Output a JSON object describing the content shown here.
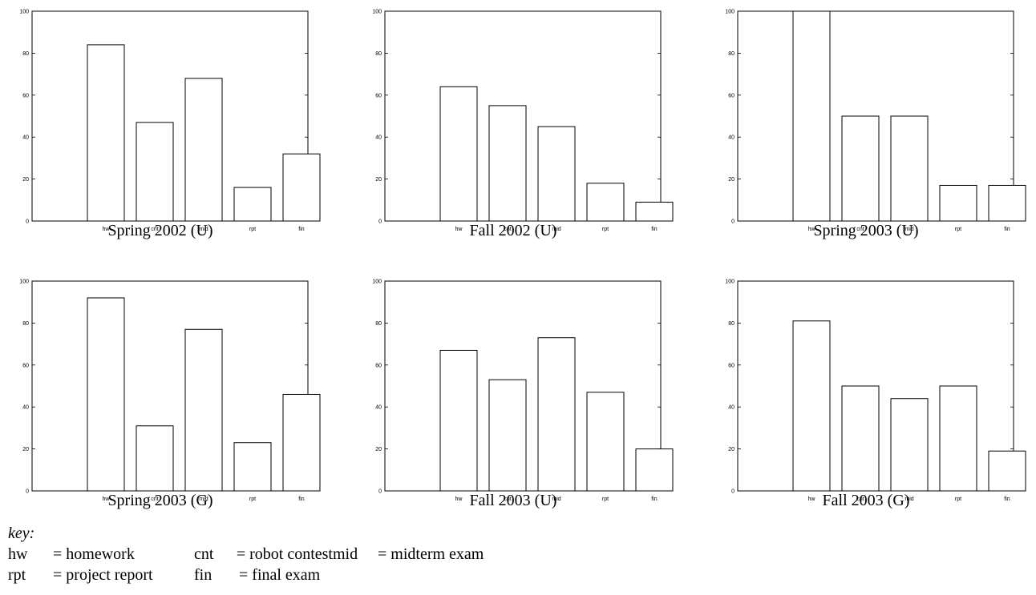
{
  "chart_data": [
    {
      "type": "bar",
      "title": "Spring 2002 (U)",
      "categories": [
        "hw",
        "cnt",
        "mid",
        "rpt",
        "fin"
      ],
      "values": [
        84,
        47,
        68,
        16,
        32
      ],
      "ylim": [
        0,
        100
      ],
      "yticks": [
        "0",
        "20",
        "40",
        "60",
        "80",
        "100"
      ],
      "xlabel": "",
      "ylabel": ""
    },
    {
      "type": "bar",
      "title": "Fall 2002 (U)",
      "categories": [
        "hw",
        "cnt",
        "mid",
        "rpt",
        "fin"
      ],
      "values": [
        64,
        55,
        45,
        18,
        9
      ],
      "ylim": [
        0,
        100
      ],
      "yticks": [
        "0",
        "20",
        "40",
        "60",
        "80",
        "100"
      ],
      "xlabel": "",
      "ylabel": ""
    },
    {
      "type": "bar",
      "title": "Spring 2003 (U)",
      "categories": [
        "hw",
        "cnt",
        "mid",
        "rpt",
        "fin"
      ],
      "values": [
        100,
        50,
        50,
        17,
        17
      ],
      "ylim": [
        0,
        100
      ],
      "yticks": [
        "0",
        "20",
        "40",
        "60",
        "80",
        "100"
      ],
      "xlabel": "",
      "ylabel": ""
    },
    {
      "type": "bar",
      "title": "Spring 2003 (G)",
      "categories": [
        "hw",
        "cnt",
        "mid",
        "rpt",
        "fin"
      ],
      "values": [
        92,
        31,
        77,
        23,
        46
      ],
      "ylim": [
        0,
        100
      ],
      "yticks": [
        "0",
        "20",
        "40",
        "60",
        "80",
        "100"
      ],
      "xlabel": "",
      "ylabel": ""
    },
    {
      "type": "bar",
      "title": "Fall 2003 (U)",
      "categories": [
        "hw",
        "cnt",
        "mid",
        "rpt",
        "fin"
      ],
      "values": [
        67,
        53,
        73,
        47,
        20
      ],
      "ylim": [
        0,
        100
      ],
      "yticks": [
        "0",
        "20",
        "40",
        "60",
        "80",
        "100"
      ],
      "xlabel": "",
      "ylabel": ""
    },
    {
      "type": "bar",
      "title": "Fall 2003 (G)",
      "categories": [
        "hw",
        "cnt",
        "mid",
        "rpt",
        "fin"
      ],
      "values": [
        81,
        50,
        44,
        50,
        19
      ],
      "ylim": [
        0,
        100
      ],
      "yticks": [
        "0",
        "20",
        "40",
        "60",
        "80",
        "100"
      ],
      "xlabel": "",
      "ylabel": ""
    }
  ],
  "key": {
    "title": "key",
    "entries": [
      {
        "abbr": "hw",
        "meaning": "= homework"
      },
      {
        "abbr": "cnt",
        "meaning": "= robot contest"
      },
      {
        "abbr": "mid",
        "meaning": "= midterm exam"
      },
      {
        "abbr": "rpt",
        "meaning": "= project report"
      },
      {
        "abbr": "fin",
        "meaning": "= final exam"
      }
    ]
  },
  "colors": {
    "bar_fill": "#ffffff",
    "bar_stroke": "#000000",
    "axis": "#000000"
  }
}
